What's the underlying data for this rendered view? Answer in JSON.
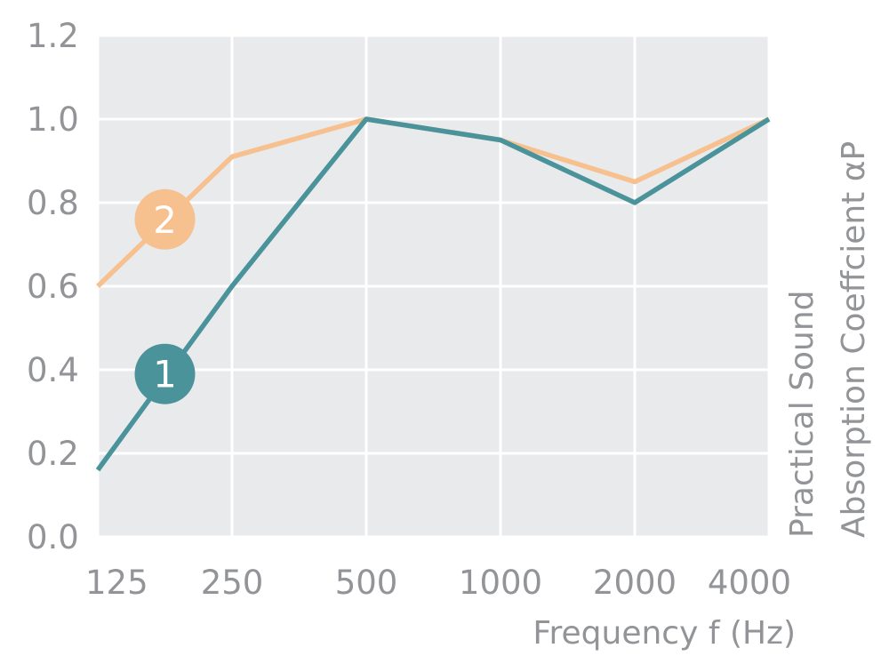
{
  "chart_data": {
    "type": "line",
    "categories": [
      "125",
      "250",
      "500",
      "1000",
      "2000",
      "4000"
    ],
    "xlabel": "Frequency f (Hz)",
    "ylabel_lines": [
      "Practical Sound",
      "Absorption Coeffcient αP"
    ],
    "ylim": [
      0,
      1.2
    ],
    "yticks": [
      "0.0",
      "0.2",
      "0.4",
      "0.6",
      "0.8",
      "1.0",
      "1.2"
    ],
    "grid": true,
    "background_color": "#e9eaec",
    "grid_color": "#ffffff",
    "series": [
      {
        "name": "2",
        "color": "#f7c08f",
        "values": [
          0.6,
          0.91,
          1.0,
          0.95,
          0.85,
          1.0
        ],
        "marker_position": 0.5,
        "marker_value": 0.76
      },
      {
        "name": "1",
        "color": "#4a939b",
        "values": [
          0.16,
          0.6,
          1.0,
          0.95,
          0.8,
          1.0
        ],
        "marker_position": 0.5,
        "marker_value": 0.39
      }
    ]
  }
}
